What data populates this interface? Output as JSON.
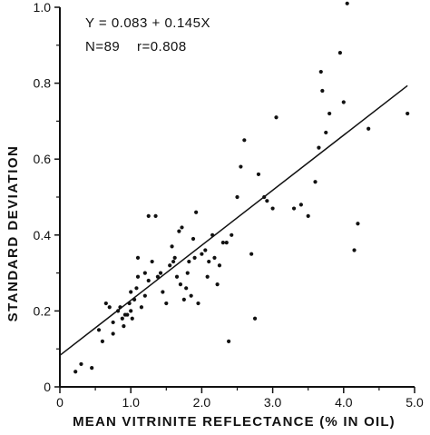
{
  "chart_data": {
    "type": "scatter",
    "xlabel": "MEAN VITRINITE REFLECTANCE (% IN OIL)",
    "ylabel": "STANDARD DEVIATION",
    "xlim": [
      0,
      5.0
    ],
    "ylim": [
      0,
      1.0
    ],
    "x_ticks": [
      0,
      1.0,
      2.0,
      3.0,
      4.0,
      5.0
    ],
    "x_tick_labels": [
      "0",
      "1.0",
      "2.0",
      "3.0",
      "4.0",
      "5.0"
    ],
    "y_ticks": [
      0,
      0.2,
      0.4,
      0.6,
      0.8,
      1.0
    ],
    "y_tick_labels": [
      "0",
      "0.2",
      "0.4",
      "0.6",
      "0.8",
      "1.0"
    ],
    "grid": false,
    "annotations": [
      "Y = 0.083 + 0.145X",
      "N=89    r=0.808"
    ],
    "regression": {
      "intercept": 0.083,
      "slope": 0.145,
      "x_range": [
        0,
        5.0
      ]
    },
    "points": [
      [
        0.22,
        0.04
      ],
      [
        0.3,
        0.06
      ],
      [
        0.45,
        0.05
      ],
      [
        0.55,
        0.15
      ],
      [
        0.6,
        0.12
      ],
      [
        0.65,
        0.22
      ],
      [
        0.7,
        0.21
      ],
      [
        0.75,
        0.17
      ],
      [
        0.75,
        0.14
      ],
      [
        0.82,
        0.2
      ],
      [
        0.85,
        0.21
      ],
      [
        0.88,
        0.18
      ],
      [
        0.9,
        0.16
      ],
      [
        0.92,
        0.19
      ],
      [
        0.95,
        0.19
      ],
      [
        0.98,
        0.22
      ],
      [
        1.0,
        0.2
      ],
      [
        1.0,
        0.25
      ],
      [
        1.02,
        0.18
      ],
      [
        1.05,
        0.23
      ],
      [
        1.08,
        0.26
      ],
      [
        1.1,
        0.29
      ],
      [
        1.1,
        0.34
      ],
      [
        1.15,
        0.21
      ],
      [
        1.2,
        0.24
      ],
      [
        1.2,
        0.3
      ],
      [
        1.25,
        0.28
      ],
      [
        1.25,
        0.45
      ],
      [
        1.3,
        0.33
      ],
      [
        1.35,
        0.45
      ],
      [
        1.38,
        0.29
      ],
      [
        1.42,
        0.3
      ],
      [
        1.45,
        0.25
      ],
      [
        1.5,
        0.22
      ],
      [
        1.55,
        0.32
      ],
      [
        1.58,
        0.37
      ],
      [
        1.6,
        0.33
      ],
      [
        1.62,
        0.34
      ],
      [
        1.65,
        0.29
      ],
      [
        1.68,
        0.41
      ],
      [
        1.7,
        0.27
      ],
      [
        1.72,
        0.42
      ],
      [
        1.75,
        0.23
      ],
      [
        1.78,
        0.26
      ],
      [
        1.8,
        0.3
      ],
      [
        1.82,
        0.33
      ],
      [
        1.85,
        0.24
      ],
      [
        1.88,
        0.39
      ],
      [
        1.9,
        0.34
      ],
      [
        1.92,
        0.46
      ],
      [
        1.95,
        0.22
      ],
      [
        2.0,
        0.35
      ],
      [
        2.05,
        0.36
      ],
      [
        2.08,
        0.29
      ],
      [
        2.1,
        0.33
      ],
      [
        2.15,
        0.4
      ],
      [
        2.18,
        0.34
      ],
      [
        2.22,
        0.27
      ],
      [
        2.25,
        0.32
      ],
      [
        2.3,
        0.38
      ],
      [
        2.35,
        0.38
      ],
      [
        2.38,
        0.12
      ],
      [
        2.42,
        0.4
      ],
      [
        2.5,
        0.5
      ],
      [
        2.55,
        0.58
      ],
      [
        2.6,
        0.65
      ],
      [
        2.7,
        0.35
      ],
      [
        2.75,
        0.18
      ],
      [
        2.8,
        0.56
      ],
      [
        2.88,
        0.5
      ],
      [
        2.92,
        0.49
      ],
      [
        3.0,
        0.47
      ],
      [
        3.05,
        0.71
      ],
      [
        3.3,
        0.47
      ],
      [
        3.4,
        0.48
      ],
      [
        3.5,
        0.45
      ],
      [
        3.6,
        0.54
      ],
      [
        3.65,
        0.63
      ],
      [
        3.68,
        0.83
      ],
      [
        3.7,
        0.78
      ],
      [
        3.75,
        0.67
      ],
      [
        3.8,
        0.72
      ],
      [
        3.95,
        0.88
      ],
      [
        4.0,
        0.75
      ],
      [
        4.05,
        1.01
      ],
      [
        4.15,
        0.36
      ],
      [
        4.2,
        0.43
      ],
      [
        4.35,
        0.68
      ],
      [
        4.9,
        0.72
      ]
    ]
  }
}
